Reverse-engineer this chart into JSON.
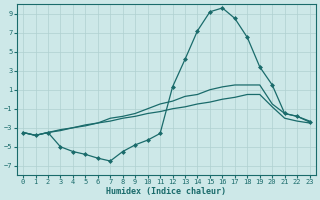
{
  "xlabel": "Humidex (Indice chaleur)",
  "bg_color": "#cde8e8",
  "line_color": "#1a6b6b",
  "grid_color": "#b0d0d0",
  "x_values": [
    0,
    1,
    2,
    3,
    4,
    5,
    6,
    7,
    8,
    9,
    10,
    11,
    12,
    13,
    14,
    15,
    16,
    17,
    18,
    19,
    20,
    21,
    22,
    23
  ],
  "y_main": [
    -3.5,
    -3.8,
    -3.5,
    -5.0,
    -5.5,
    -5.8,
    -6.2,
    -6.5,
    -5.5,
    -4.8,
    -4.3,
    -3.6,
    1.3,
    4.2,
    7.2,
    9.2,
    9.6,
    8.5,
    6.5,
    3.4,
    1.5,
    -1.5,
    -1.8,
    -2.4
  ],
  "y_upper": [
    -3.5,
    -3.8,
    -3.5,
    -3.2,
    -3.0,
    -2.7,
    -2.5,
    -2.0,
    -1.8,
    -1.5,
    -1.0,
    -0.5,
    -0.2,
    0.3,
    0.5,
    1.0,
    1.3,
    1.5,
    1.5,
    1.5,
    -0.5,
    -1.5,
    -1.8,
    -2.3
  ],
  "y_lower": [
    -3.5,
    -3.8,
    -3.5,
    -3.3,
    -3.0,
    -2.8,
    -2.5,
    -2.3,
    -2.0,
    -1.8,
    -1.5,
    -1.3,
    -1.0,
    -0.8,
    -0.5,
    -0.3,
    0.0,
    0.2,
    0.5,
    0.5,
    -0.8,
    -2.0,
    -2.3,
    -2.5
  ],
  "ylim": [
    -8,
    10
  ],
  "xlim": [
    -0.5,
    23.5
  ],
  "yticks": [
    -7,
    -5,
    -3,
    -1,
    1,
    3,
    5,
    7,
    9
  ],
  "xticks": [
    0,
    1,
    2,
    3,
    4,
    5,
    6,
    7,
    8,
    9,
    10,
    11,
    12,
    13,
    14,
    15,
    16,
    17,
    18,
    19,
    20,
    21,
    22,
    23
  ]
}
